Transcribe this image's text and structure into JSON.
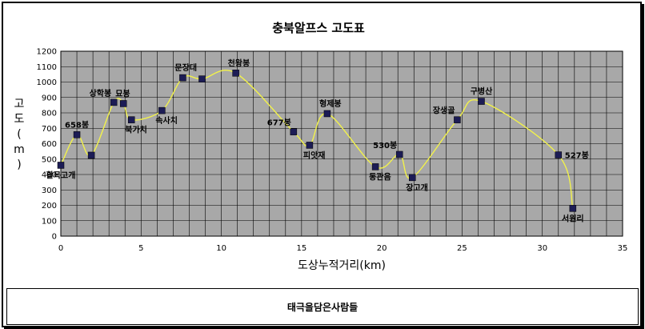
{
  "chart_data": {
    "type": "line",
    "title": "충북알프스 고도표",
    "xlabel": "도상누적거리(km)",
    "ylabel": "고도(m)",
    "xlim": [
      0,
      35
    ],
    "ylim": [
      0,
      1200
    ],
    "xticks": [
      0,
      5,
      10,
      15,
      20,
      25,
      30,
      35
    ],
    "yticks": [
      0,
      100,
      200,
      300,
      400,
      500,
      600,
      700,
      800,
      900,
      1000,
      1100,
      1200
    ],
    "grid": true,
    "series": [
      {
        "points": [
          {
            "x": 0.0,
            "y": 460,
            "label": "활목고개"
          },
          {
            "x": 1.0,
            "y": 658,
            "label": "658봉"
          },
          {
            "x": 1.9,
            "y": 525,
            "label": ""
          },
          {
            "x": 3.3,
            "y": 868,
            "label": "상학봉"
          },
          {
            "x": 3.9,
            "y": 860,
            "label": "묘봉"
          },
          {
            "x": 4.4,
            "y": 755,
            "label": "북가치"
          },
          {
            "x": 6.3,
            "y": 815,
            "label": "속사치"
          },
          {
            "x": 7.6,
            "y": 1028,
            "label": "문장대"
          },
          {
            "x": 8.8,
            "y": 1020,
            "label": ""
          },
          {
            "x": 10.9,
            "y": 1058,
            "label": "천왕봉"
          },
          {
            "x": 14.5,
            "y": 677,
            "label": "677봉"
          },
          {
            "x": 15.5,
            "y": 590,
            "label": "피앗재"
          },
          {
            "x": 16.6,
            "y": 795,
            "label": "형제봉"
          },
          {
            "x": 19.6,
            "y": 450,
            "label": "동관음"
          },
          {
            "x": 21.1,
            "y": 530,
            "label": "530봉"
          },
          {
            "x": 21.9,
            "y": 380,
            "label": "장고개"
          },
          {
            "x": 24.7,
            "y": 755,
            "label": "장생골"
          },
          {
            "x": 26.2,
            "y": 875,
            "label": "구병산"
          },
          {
            "x": 31.0,
            "y": 527,
            "label": "527봉"
          },
          {
            "x": 31.9,
            "y": 180,
            "label": "서원리"
          }
        ]
      }
    ]
  },
  "credit": "태극을담은사람들",
  "colors": {
    "plot_bg": "#a8a8a8",
    "grid": "#000000",
    "line": "#f2f24a",
    "marker": "#1c1c55",
    "frame": "#000000"
  }
}
